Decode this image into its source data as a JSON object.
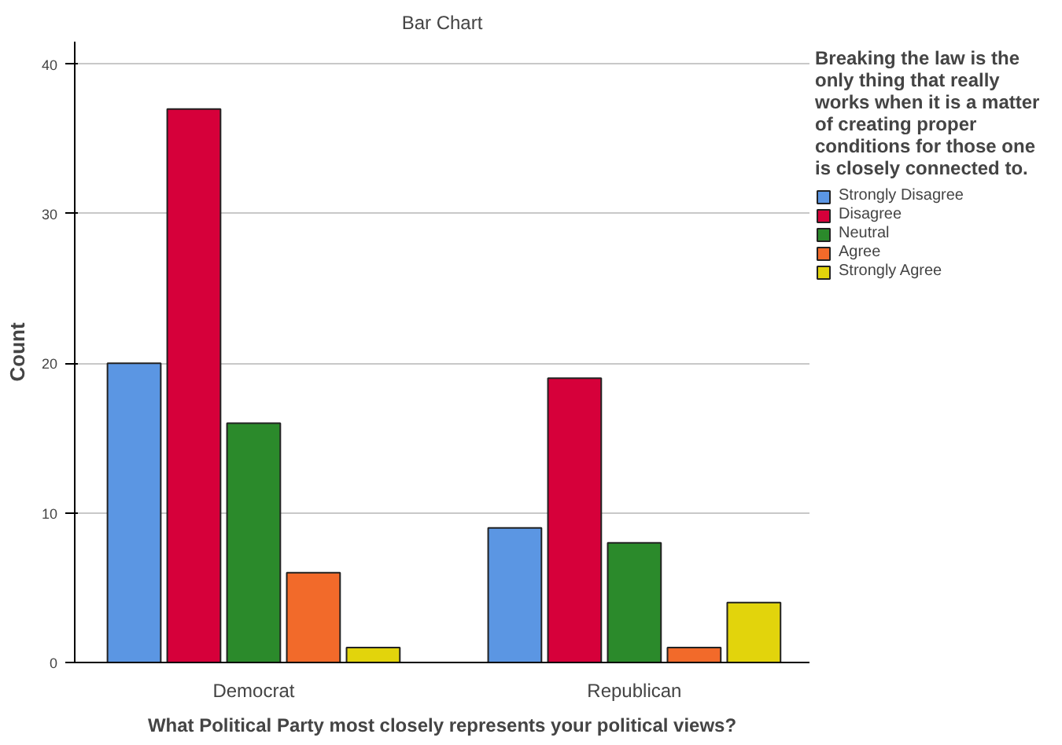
{
  "chart_data": {
    "type": "bar",
    "title": "Bar Chart",
    "xlabel": "What Political Party most closely represents your political views?",
    "ylabel": "Count",
    "legend_title": "Breaking the law is the only thing that really works when it is a matter of creating proper conditions for those one is closely connected to.",
    "categories": [
      "Democrat",
      "Republican"
    ],
    "series": [
      {
        "name": "Strongly Disagree",
        "color": "#5b96e3",
        "values": [
          20,
          9
        ]
      },
      {
        "name": "Disagree",
        "color": "#d6003a",
        "values": [
          37,
          19
        ]
      },
      {
        "name": "Neutral",
        "color": "#2b8a2b",
        "values": [
          16,
          8
        ]
      },
      {
        "name": "Agree",
        "color": "#f26a2a",
        "values": [
          6,
          1
        ]
      },
      {
        "name": "Strongly Agree",
        "color": "#e2d40c",
        "values": [
          1,
          4
        ]
      }
    ],
    "ylim": [
      0,
      41.5
    ],
    "yticks": [
      0,
      10,
      20,
      30,
      40
    ],
    "grid": "y",
    "legend": "right"
  }
}
